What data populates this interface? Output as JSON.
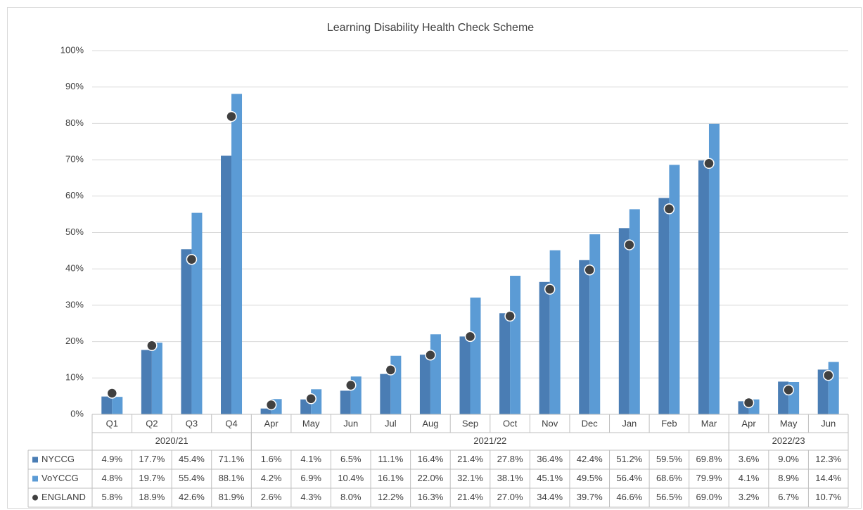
{
  "chart_data": {
    "type": "bar",
    "title": "Learning Disability Health Check Scheme",
    "categories": [
      "Q1",
      "Q2",
      "Q3",
      "Q4",
      "Apr",
      "May",
      "Jun",
      "Jul",
      "Aug",
      "Sep",
      "Oct",
      "Nov",
      "Dec",
      "Jan",
      "Feb",
      "Mar",
      "Apr",
      "May",
      "Jun"
    ],
    "groups": [
      {
        "label": "2020/21",
        "start": 0,
        "end": 3
      },
      {
        "label": "2021/22",
        "start": 4,
        "end": 15
      },
      {
        "label": "2022/23",
        "start": 16,
        "end": 18
      }
    ],
    "series": [
      {
        "name": "NYCCG",
        "type": "bar",
        "color": "#4a7db4",
        "values": [
          4.9,
          17.7,
          45.4,
          71.1,
          1.6,
          4.1,
          6.5,
          11.1,
          16.4,
          21.4,
          27.8,
          36.4,
          42.4,
          51.2,
          59.5,
          69.8,
          3.6,
          9.0,
          12.3
        ],
        "value_labels": [
          "4.9%",
          "17.7%",
          "45.4%",
          "71.1%",
          "1.6%",
          "4.1%",
          "6.5%",
          "11.1%",
          "16.4%",
          "21.4%",
          "27.8%",
          "36.4%",
          "42.4%",
          "51.2%",
          "59.5%",
          "69.8%",
          "3.6%",
          "9.0%",
          "12.3%"
        ]
      },
      {
        "name": "VoYCCG",
        "type": "bar",
        "color": "#5b9bd5",
        "values": [
          4.8,
          19.7,
          55.4,
          88.1,
          4.2,
          6.9,
          10.4,
          16.1,
          22.0,
          32.1,
          38.1,
          45.1,
          49.5,
          56.4,
          68.6,
          79.9,
          4.1,
          8.9,
          14.4
        ],
        "value_labels": [
          "4.8%",
          "19.7%",
          "55.4%",
          "88.1%",
          "4.2%",
          "6.9%",
          "10.4%",
          "16.1%",
          "22.0%",
          "32.1%",
          "38.1%",
          "45.1%",
          "49.5%",
          "56.4%",
          "68.6%",
          "79.9%",
          "4.1%",
          "8.9%",
          "14.4%"
        ]
      },
      {
        "name": "ENGLAND",
        "type": "scatter",
        "color": "#404040",
        "values": [
          5.8,
          18.9,
          42.6,
          81.9,
          2.6,
          4.3,
          8.0,
          12.2,
          16.3,
          21.4,
          27.0,
          34.4,
          39.7,
          46.6,
          56.5,
          69.0,
          3.2,
          6.7,
          10.7
        ],
        "value_labels": [
          "5.8%",
          "18.9%",
          "42.6%",
          "81.9%",
          "2.6%",
          "4.3%",
          "8.0%",
          "12.2%",
          "16.3%",
          "21.4%",
          "27.0%",
          "34.4%",
          "39.7%",
          "46.6%",
          "56.5%",
          "69.0%",
          "3.2%",
          "6.7%",
          "10.7%"
        ]
      }
    ],
    "ylim": [
      0,
      100
    ],
    "yticks": [
      {
        "value": 0,
        "label": "0%"
      },
      {
        "value": 10,
        "label": "10%"
      },
      {
        "value": 20,
        "label": "20%"
      },
      {
        "value": 30,
        "label": "30%"
      },
      {
        "value": 40,
        "label": "40%"
      },
      {
        "value": 50,
        "label": "50%"
      },
      {
        "value": 60,
        "label": "60%"
      },
      {
        "value": 70,
        "label": "70%"
      },
      {
        "value": 80,
        "label": "80%"
      },
      {
        "value": 90,
        "label": "90%"
      },
      {
        "value": 100,
        "label": "100%"
      }
    ],
    "grid": true
  }
}
